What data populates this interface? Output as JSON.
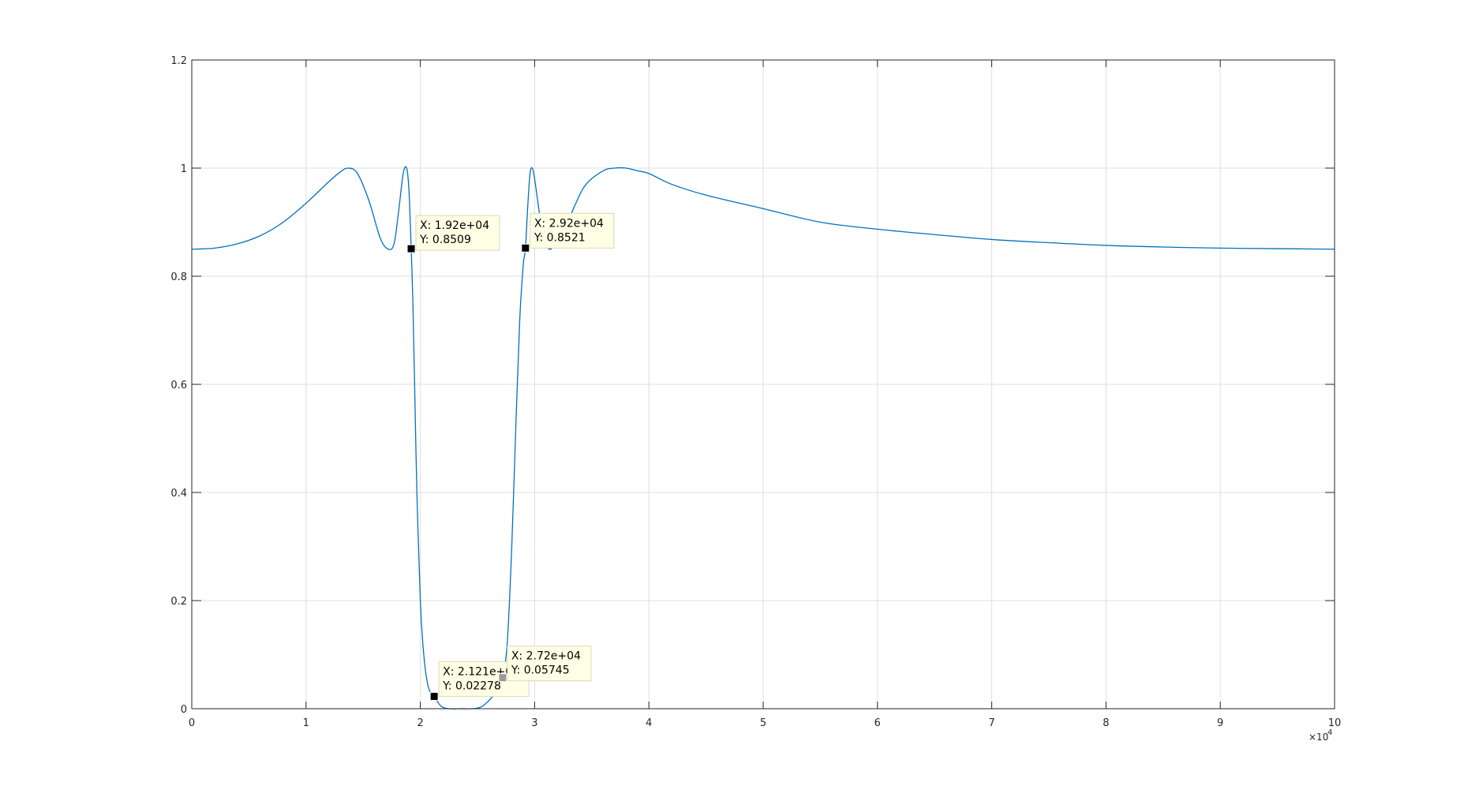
{
  "chart_data": {
    "type": "line",
    "title": "",
    "xlabel": "",
    "ylabel": "",
    "xlim": [
      0,
      100000
    ],
    "ylim": [
      0,
      1.2
    ],
    "grid": true,
    "x_exponent": {
      "multiplier": "×10",
      "power": "4"
    },
    "x_ticks": [
      {
        "value": 0,
        "label": "0"
      },
      {
        "value": 10000,
        "label": "1"
      },
      {
        "value": 20000,
        "label": "2"
      },
      {
        "value": 30000,
        "label": "3"
      },
      {
        "value": 40000,
        "label": "4"
      },
      {
        "value": 50000,
        "label": "5"
      },
      {
        "value": 60000,
        "label": "6"
      },
      {
        "value": 70000,
        "label": "7"
      },
      {
        "value": 80000,
        "label": "8"
      },
      {
        "value": 90000,
        "label": "9"
      },
      {
        "value": 100000,
        "label": "10"
      }
    ],
    "y_ticks": [
      {
        "value": 0,
        "label": "0"
      },
      {
        "value": 0.2,
        "label": "0.2"
      },
      {
        "value": 0.4,
        "label": "0.4"
      },
      {
        "value": 0.6,
        "label": "0.6"
      },
      {
        "value": 0.8,
        "label": "0.8"
      },
      {
        "value": 1.0,
        "label": "1"
      },
      {
        "value": 1.2,
        "label": "1.2"
      }
    ],
    "line_color": "#0072BD",
    "series": [
      {
        "x": [
          0,
          2000,
          4000,
          6000,
          8000,
          10000,
          12000,
          13000,
          13700,
          14500,
          15500,
          16500,
          17200,
          17700,
          18100,
          18500,
          18800,
          19000,
          19200,
          19350,
          19500,
          19700,
          20000,
          20300,
          20700,
          21210,
          21800,
          22500,
          23500,
          24500,
          25300,
          26000,
          26500,
          27000,
          27200,
          27600,
          28000,
          28400,
          28700,
          29000,
          29200,
          29400,
          29600,
          29800,
          30000,
          30400,
          30800,
          31300,
          31800,
          32500,
          33500,
          34500,
          36000,
          37000,
          38000,
          39000,
          40000,
          42000,
          45000,
          50000,
          55000,
          60000,
          65000,
          70000,
          75000,
          80000,
          85000,
          90000,
          95000,
          100000
        ],
        "y": [
          0.85,
          0.852,
          0.86,
          0.875,
          0.9,
          0.935,
          0.975,
          0.993,
          1.0,
          0.99,
          0.94,
          0.87,
          0.85,
          0.86,
          0.92,
          0.99,
          1.0,
          0.96,
          0.8509,
          0.75,
          0.6,
          0.4,
          0.2,
          0.1,
          0.04,
          0.02278,
          0.005,
          0.0,
          0.0,
          0.0,
          0.003,
          0.015,
          0.028,
          0.045,
          0.05745,
          0.12,
          0.3,
          0.55,
          0.72,
          0.82,
          0.8521,
          0.93,
          0.99,
          1.0,
          0.98,
          0.92,
          0.87,
          0.85,
          0.86,
          0.88,
          0.93,
          0.97,
          0.995,
          1.0,
          1.0,
          0.995,
          0.99,
          0.97,
          0.95,
          0.925,
          0.9,
          0.887,
          0.877,
          0.868,
          0.862,
          0.857,
          0.854,
          0.852,
          0.851,
          0.85
        ]
      }
    ],
    "datatips": [
      {
        "x": 19200,
        "y": 0.8509,
        "x_text": "X: 1.92e+04",
        "y_text": "Y: 0.8509",
        "marker": "black",
        "box_dx": 6,
        "box_dy": -42,
        "box_w": 106,
        "box_h": 44
      },
      {
        "x": 29200,
        "y": 0.8521,
        "x_text": "X: 2.92e+04",
        "y_text": "Y: 0.8521",
        "marker": "black",
        "box_dx": 6,
        "box_dy": -44,
        "box_w": 106,
        "box_h": 44
      },
      {
        "x": 21210,
        "y": 0.02278,
        "x_text": "X: 2.121e+04",
        "y_text": "Y: 0.02278",
        "marker": "black",
        "box_dx": 6,
        "box_dy": -44,
        "box_w": 114,
        "box_h": 44
      },
      {
        "x": 27200,
        "y": 0.05745,
        "x_text": "X: 2.72e+04",
        "y_text": "Y: 0.05745",
        "marker": "gray",
        "box_dx": 6,
        "box_dy": -40,
        "box_w": 106,
        "box_h": 44
      }
    ]
  }
}
